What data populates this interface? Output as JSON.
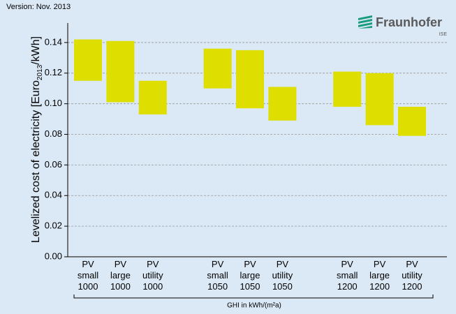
{
  "chart_data": {
    "type": "floating_bar",
    "version": "Version: Nov. 2013",
    "logo": {
      "name": "Fraunhofer",
      "sub": "ISE"
    },
    "y_label": [
      "Levelized cost of electricity [Euro",
      "2013",
      "/kWh]"
    ],
    "x_label": "GHI in kWh/(m²a)",
    "categories": [
      [
        "PV",
        "small",
        "1000"
      ],
      [
        "PV",
        "large",
        "1000"
      ],
      [
        "PV",
        "utility",
        "1000"
      ],
      null,
      [
        "PV",
        "small",
        "1050"
      ],
      [
        "PV",
        "large",
        "1050"
      ],
      [
        "PV",
        "utility",
        "1050"
      ],
      null,
      [
        "PV",
        "small",
        "1200"
      ],
      [
        "PV",
        "large",
        "1200"
      ],
      [
        "PV",
        "utility",
        "1200"
      ]
    ],
    "values": [
      [
        0.115,
        0.142
      ],
      [
        0.101,
        0.141
      ],
      [
        0.093,
        0.115
      ],
      null,
      [
        0.11,
        0.136
      ],
      [
        0.097,
        0.135
      ],
      [
        0.089,
        0.111
      ],
      null,
      [
        0.098,
        0.121
      ],
      [
        0.086,
        0.12
      ],
      [
        0.079,
        0.098
      ]
    ],
    "color": "#dede00",
    "ylim": [
      0,
      0.15
    ],
    "yticks": [
      {
        "value": 0,
        "label": "0.00"
      },
      0.02,
      0.04,
      0.06,
      0.08,
      {
        "value": 0.1,
        "label": "0.10"
      },
      0.12,
      0.14
    ],
    "grid": true
  }
}
